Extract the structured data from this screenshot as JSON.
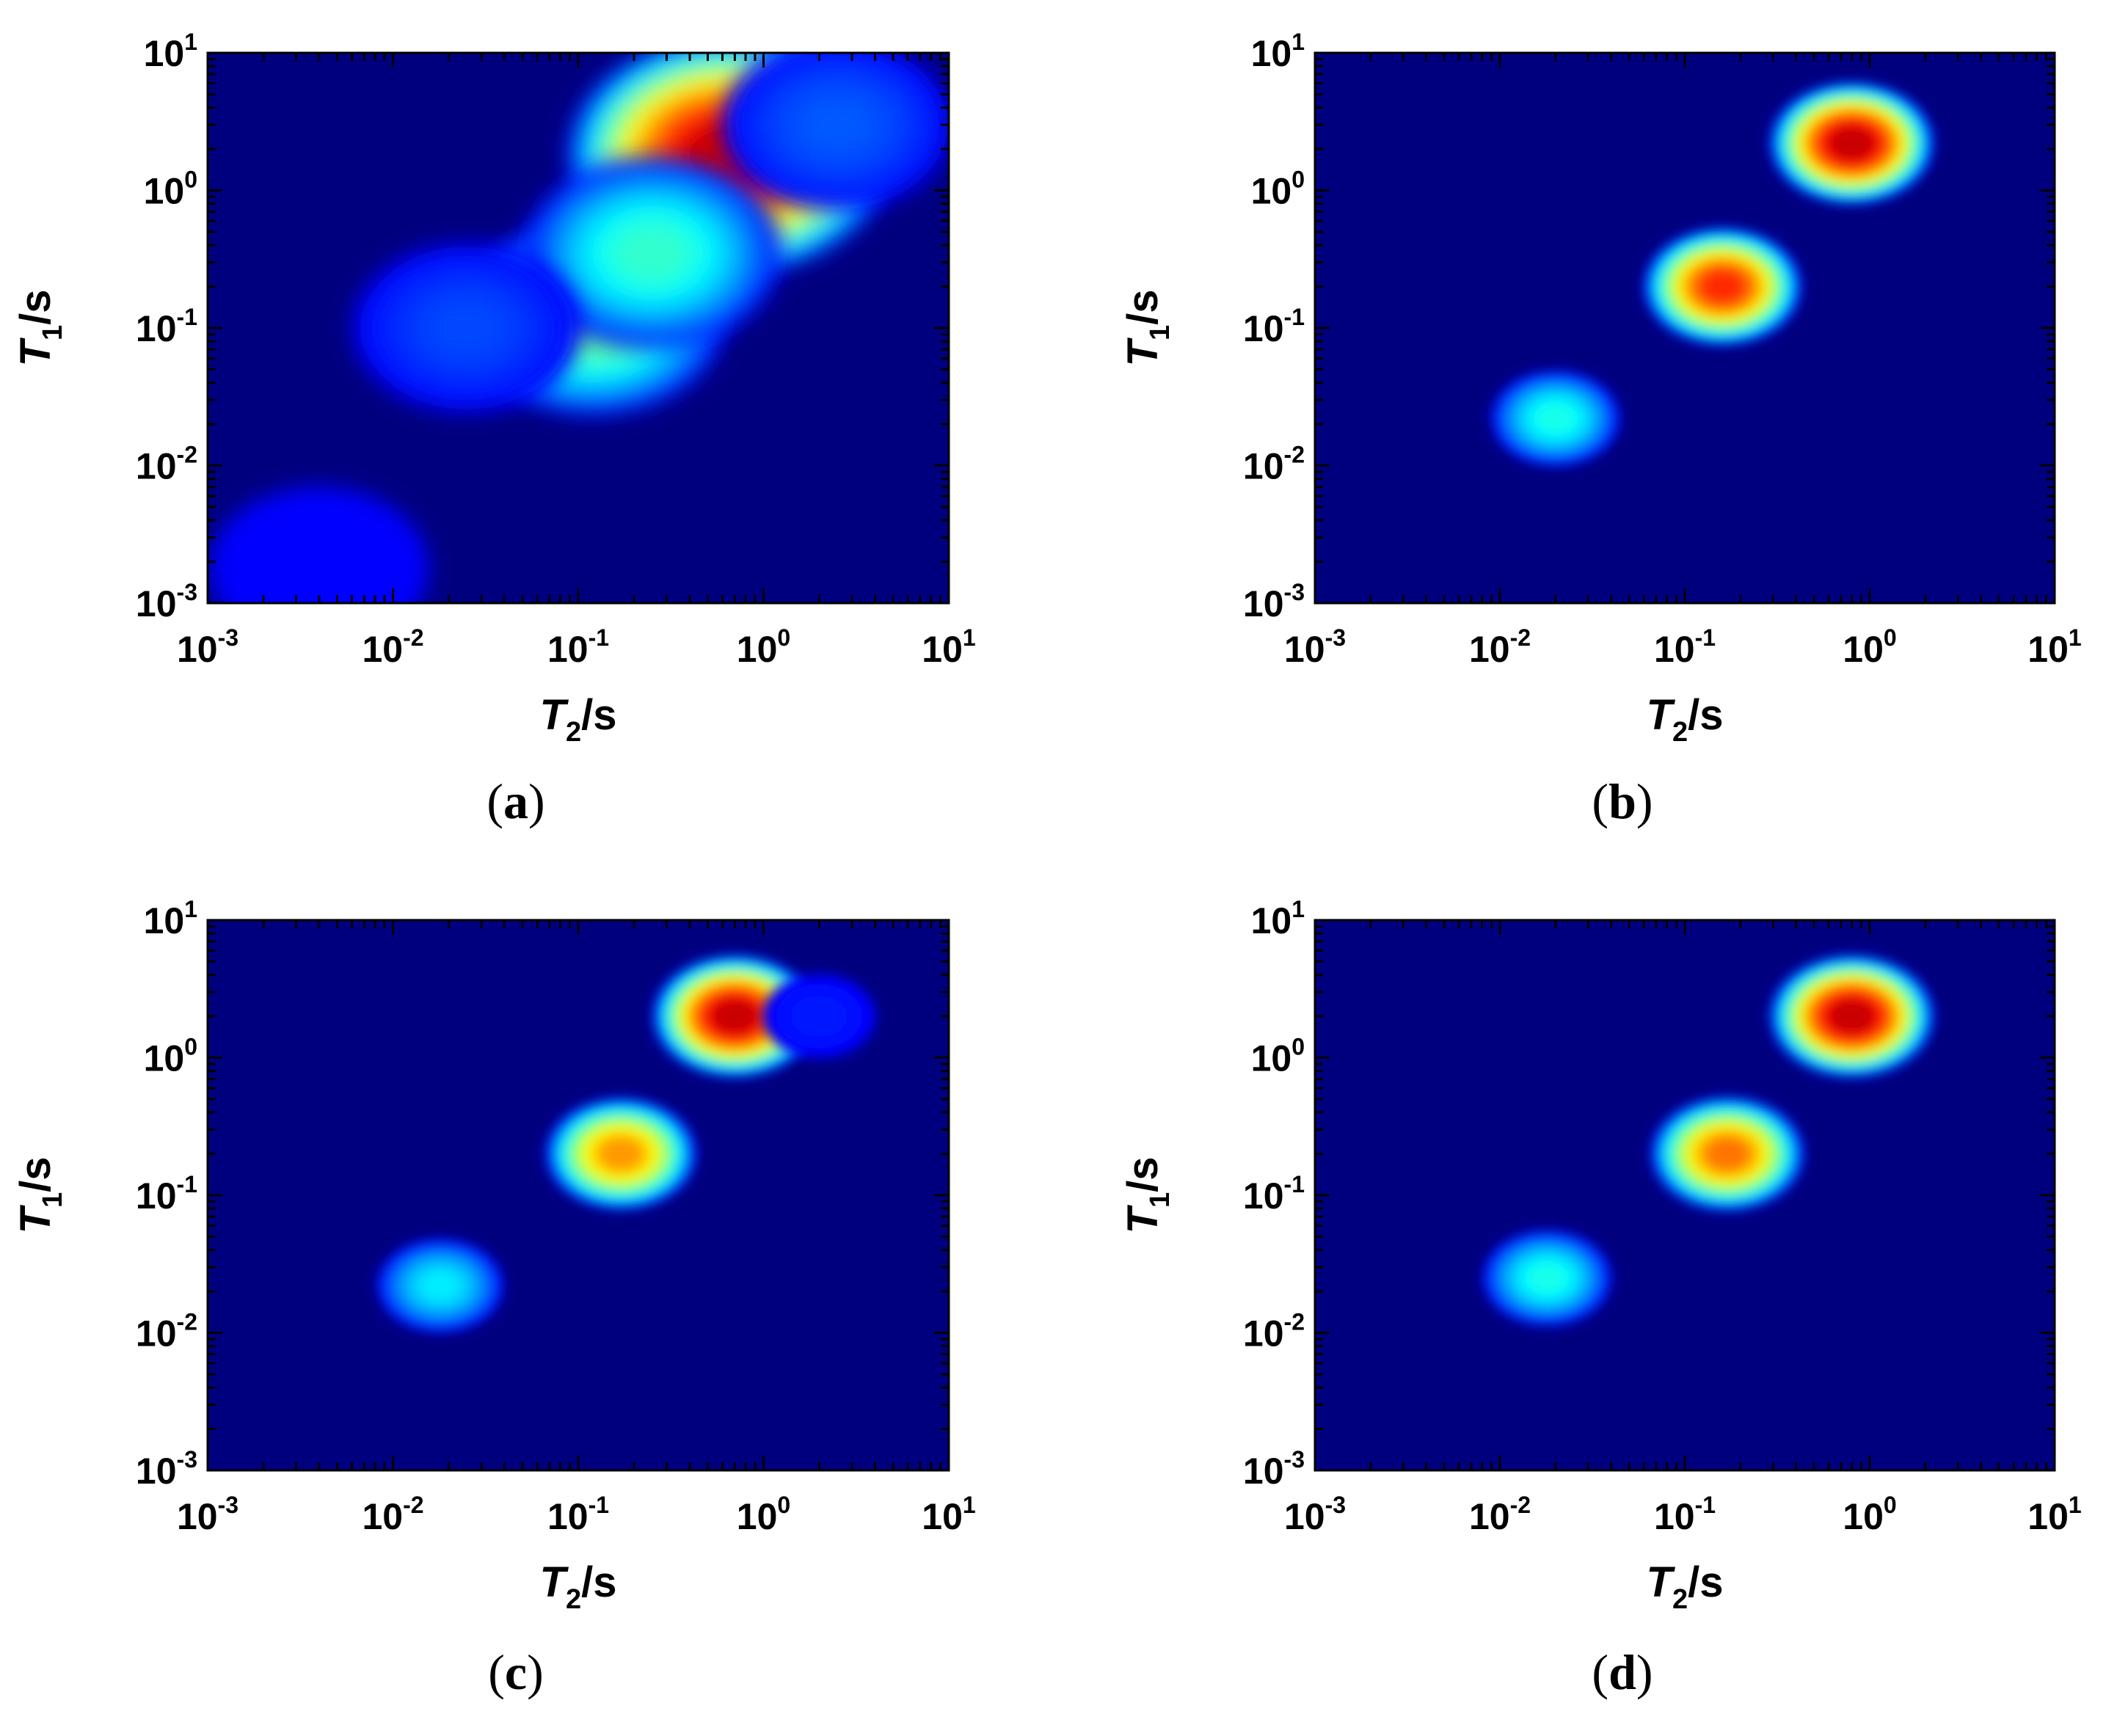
{
  "colors": {
    "background": "#00007F",
    "colormap": "jet",
    "axis": "#000000"
  },
  "chart_data": [
    {
      "type": "heatmap",
      "caption": "a",
      "xlabel": {
        "symbol": "T",
        "sub": "2",
        "unit": "/s"
      },
      "ylabel": {
        "symbol": "T",
        "sub": "1",
        "unit": "/s"
      },
      "x_scale": "log",
      "y_scale": "log",
      "xlim": [
        0.001,
        10
      ],
      "ylim": [
        0.001,
        10
      ],
      "x_ticks": [
        {
          "base": "10",
          "exp": "-3"
        },
        {
          "base": "10",
          "exp": "-2"
        },
        {
          "base": "10",
          "exp": "-1"
        },
        {
          "base": "10",
          "exp": "0"
        },
        {
          "base": "10",
          "exp": "1"
        }
      ],
      "y_ticks": [
        {
          "base": "10",
          "exp": "-3"
        },
        {
          "base": "10",
          "exp": "-2"
        },
        {
          "base": "10",
          "exp": "-1"
        },
        {
          "base": "10",
          "exp": "0"
        },
        {
          "base": "10",
          "exp": "1"
        }
      ],
      "peaks": [
        {
          "t2": 0.65,
          "t1": 1.8,
          "intensity": 1.0
        },
        {
          "t2": 0.12,
          "t1": 0.12,
          "intensity": 0.52
        },
        {
          "t2": 0.25,
          "t1": 0.35,
          "intensity": 0.45
        },
        {
          "t2": 0.025,
          "t1": 0.1,
          "intensity": 0.2
        },
        {
          "t2": 2.5,
          "t1": 3.0,
          "intensity": 0.22
        },
        {
          "t2": 0.004,
          "t1": 0.0018,
          "intensity": 0.13
        }
      ]
    },
    {
      "type": "heatmap",
      "caption": "b",
      "xlabel": {
        "symbol": "T",
        "sub": "2",
        "unit": "/s"
      },
      "ylabel": {
        "symbol": "T",
        "sub": "1",
        "unit": "/s"
      },
      "x_scale": "log",
      "y_scale": "log",
      "xlim": [
        0.001,
        10
      ],
      "ylim": [
        0.001,
        10
      ],
      "x_ticks": [
        {
          "base": "10",
          "exp": "-3"
        },
        {
          "base": "10",
          "exp": "-2"
        },
        {
          "base": "10",
          "exp": "-1"
        },
        {
          "base": "10",
          "exp": "0"
        },
        {
          "base": "10",
          "exp": "1"
        }
      ],
      "y_ticks": [
        {
          "base": "10",
          "exp": "-3"
        },
        {
          "base": "10",
          "exp": "-2"
        },
        {
          "base": "10",
          "exp": "-1"
        },
        {
          "base": "10",
          "exp": "0"
        },
        {
          "base": "10",
          "exp": "1"
        }
      ],
      "peaks": [
        {
          "t2": 0.8,
          "t1": 2.2,
          "intensity": 1.0
        },
        {
          "t2": 0.16,
          "t1": 0.2,
          "intensity": 0.9
        },
        {
          "t2": 0.02,
          "t1": 0.022,
          "intensity": 0.42
        }
      ]
    },
    {
      "type": "heatmap",
      "caption": "c",
      "xlabel": {
        "symbol": "T",
        "sub": "2",
        "unit": "/s"
      },
      "ylabel": {
        "symbol": "T",
        "sub": "1",
        "unit": "/s"
      },
      "x_scale": "log",
      "y_scale": "log",
      "xlim": [
        0.001,
        10
      ],
      "ylim": [
        0.001,
        10
      ],
      "x_ticks": [
        {
          "base": "10",
          "exp": "-3"
        },
        {
          "base": "10",
          "exp": "-2"
        },
        {
          "base": "10",
          "exp": "-1"
        },
        {
          "base": "10",
          "exp": "0"
        },
        {
          "base": "10",
          "exp": "1"
        }
      ],
      "y_ticks": [
        {
          "base": "10",
          "exp": "-3"
        },
        {
          "base": "10",
          "exp": "-2"
        },
        {
          "base": "10",
          "exp": "-1"
        },
        {
          "base": "10",
          "exp": "0"
        },
        {
          "base": "10",
          "exp": "1"
        }
      ],
      "peaks": [
        {
          "t2": 0.7,
          "t1": 2.0,
          "intensity": 1.0
        },
        {
          "t2": 0.17,
          "t1": 0.2,
          "intensity": 0.78
        },
        {
          "t2": 0.018,
          "t1": 0.022,
          "intensity": 0.38
        },
        {
          "t2": 2.0,
          "t1": 2.0,
          "intensity": 0.15
        }
      ]
    },
    {
      "type": "heatmap",
      "caption": "d",
      "xlabel": {
        "symbol": "T",
        "sub": "2",
        "unit": "/s"
      },
      "ylabel": {
        "symbol": "T",
        "sub": "1",
        "unit": "/s"
      },
      "x_scale": "log",
      "y_scale": "log",
      "xlim": [
        0.001,
        10
      ],
      "ylim": [
        0.001,
        10
      ],
      "x_ticks": [
        {
          "base": "10",
          "exp": "-3"
        },
        {
          "base": "10",
          "exp": "-2"
        },
        {
          "base": "10",
          "exp": "-1"
        },
        {
          "base": "10",
          "exp": "0"
        },
        {
          "base": "10",
          "exp": "1"
        }
      ],
      "y_ticks": [
        {
          "base": "10",
          "exp": "-3"
        },
        {
          "base": "10",
          "exp": "-2"
        },
        {
          "base": "10",
          "exp": "-1"
        },
        {
          "base": "10",
          "exp": "0"
        },
        {
          "base": "10",
          "exp": "1"
        }
      ],
      "peaks": [
        {
          "t2": 0.8,
          "t1": 2.0,
          "intensity": 1.0
        },
        {
          "t2": 0.17,
          "t1": 0.2,
          "intensity": 0.82
        },
        {
          "t2": 0.018,
          "t1": 0.025,
          "intensity": 0.42
        }
      ]
    }
  ]
}
